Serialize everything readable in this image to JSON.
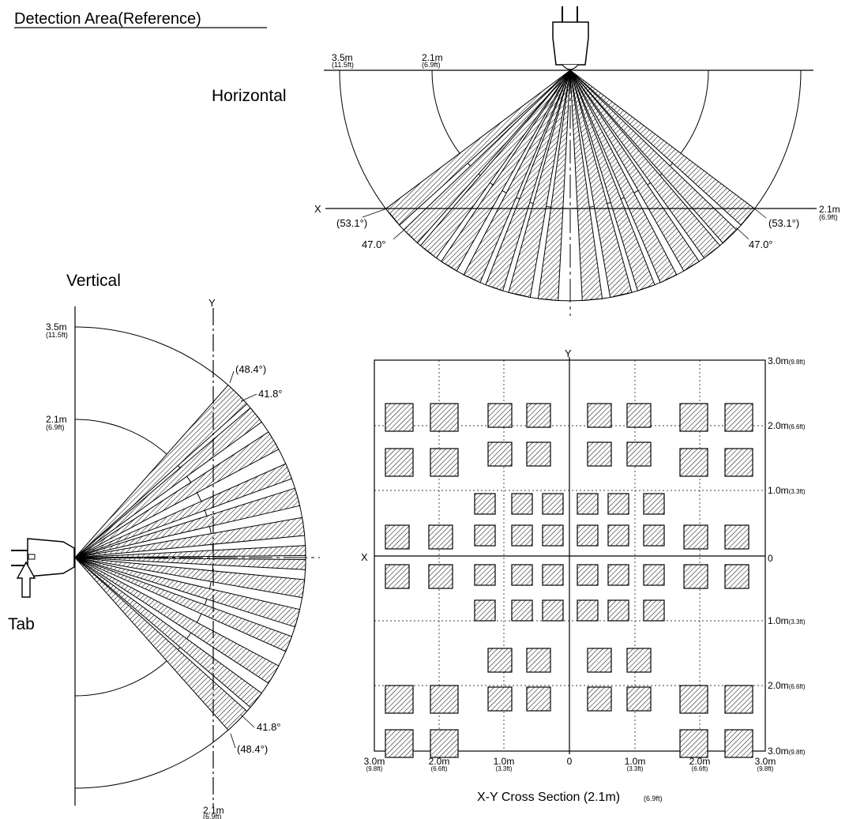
{
  "title": "Detection Area(Reference)",
  "horizontal": {
    "heading": "Horizontal",
    "r_outer_m": "3.5m",
    "r_outer_ft": "(11.5ft)",
    "r_inner_m": "2.1m",
    "r_inner_ft": "(6.9ft)",
    "axis_x": "X",
    "axis_end_m": "2.1m",
    "axis_end_ft": "(6.9ft)",
    "angle_outer_left": "(53.1°)",
    "angle_outer_right": "(53.1°)",
    "angle_inner_left": "47.0°",
    "angle_inner_right": "47.0°"
  },
  "vertical": {
    "heading": "Vertical",
    "r_outer_m": "3.5m",
    "r_outer_ft": "(11.5ft)",
    "r_inner_m": "2.1m",
    "r_inner_ft": "(6.9ft)",
    "axis_y": "Y",
    "axis_end_m": "2.1m",
    "axis_end_ft": "(6.9ft)",
    "angle_outer_top": "(48.4°)",
    "angle_inner_top": "41.8°",
    "angle_inner_bottom": "41.8°",
    "angle_outer_bottom": "(48.4°)",
    "tab_label": "Tab"
  },
  "cross_section": {
    "caption": "X-Y Cross Section (2.1m)",
    "caption_unit": "(6.9ft)",
    "axis_x": "X",
    "axis_y": "Y",
    "right_labels": [
      {
        "m": "3.0m",
        "ft": "(9.8ft)"
      },
      {
        "m": "2.0m",
        "ft": "(6.6ft)"
      },
      {
        "m": "1.0m",
        "ft": "(3.3ft)"
      },
      {
        "m": "0",
        "ft": ""
      },
      {
        "m": "1.0m",
        "ft": "(3.3ft)"
      },
      {
        "m": "2.0m",
        "ft": "(6.6ft)"
      },
      {
        "m": "3.0m",
        "ft": "(9.8ft)"
      }
    ],
    "bottom_labels": [
      {
        "m": "3.0m",
        "ft": "(9.8ft)"
      },
      {
        "m": "2.0m",
        "ft": "(6.6ft)"
      },
      {
        "m": "1.0m",
        "ft": "(3.3ft)"
      },
      {
        "m": "0",
        "ft": ""
      },
      {
        "m": "1.0m",
        "ft": "(3.3ft)"
      },
      {
        "m": "2.0m",
        "ft": "(6.6ft)"
      },
      {
        "m": "3.0m",
        "ft": "(9.8ft)"
      }
    ]
  }
}
